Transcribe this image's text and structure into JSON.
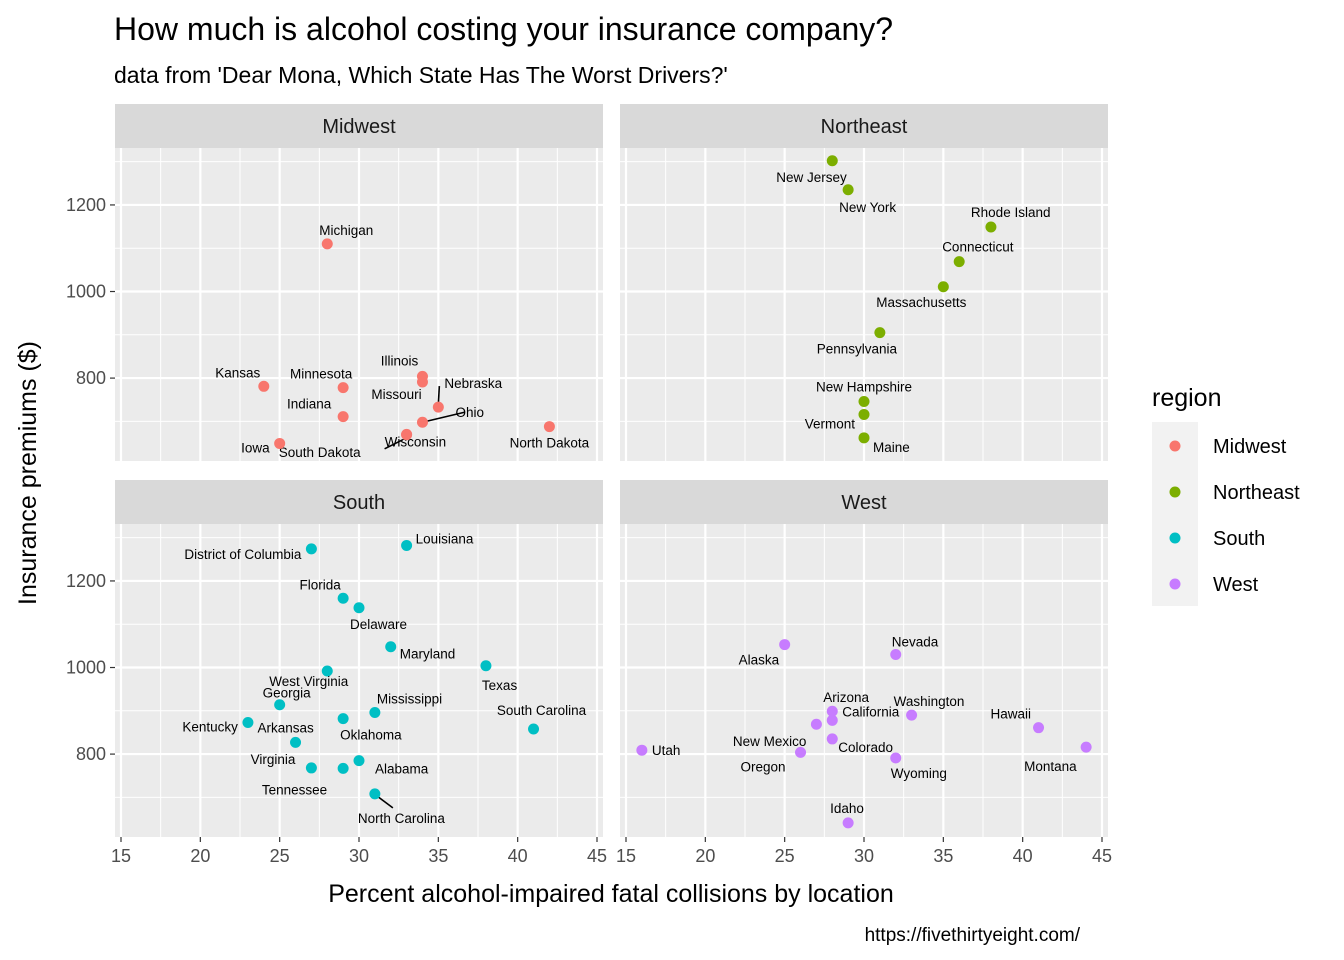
{
  "chart_data": {
    "type": "scatter",
    "title": "How much is alcohol costing your insurance company?",
    "subtitle": "data from 'Dear Mona, Which State Has The Worst Drivers?'",
    "caption": "https://fivethirtyeight.com/",
    "xlabel": "Percent alcohol-impaired fatal collisions by location",
    "ylabel": "Insurance premiums ($)",
    "xlim": [
      15,
      45
    ],
    "ylim": [
      620,
      1320
    ],
    "x_ticks": [
      15,
      20,
      25,
      30,
      35,
      40,
      45
    ],
    "y_ticks": [
      800,
      1000,
      1200
    ],
    "grid": true,
    "facet_by": "region",
    "legend": {
      "title": "region",
      "position": "right",
      "entries": [
        {
          "name": "Midwest",
          "color": "#F8766D"
        },
        {
          "name": "Northeast",
          "color": "#7CAE00"
        },
        {
          "name": "South",
          "color": "#00BFC4"
        },
        {
          "name": "West",
          "color": "#C77CFF"
        }
      ]
    },
    "facets": [
      {
        "name": "Midwest",
        "color": "#F8766D",
        "points": [
          {
            "label": "Michigan",
            "x": 28,
            "y": 1110
          },
          {
            "label": "Kansas",
            "x": 24,
            "y": 781
          },
          {
            "label": "Minnesota",
            "x": 29,
            "y": 778
          },
          {
            "label": "Illinois",
            "x": 34,
            "y": 804
          },
          {
            "label": "Missouri",
            "x": 34,
            "y": 791
          },
          {
            "label": "Nebraska",
            "x": 35,
            "y": 733
          },
          {
            "label": "Indiana",
            "x": 29,
            "y": 711
          },
          {
            "label": "Ohio",
            "x": 34,
            "y": 698
          },
          {
            "label": "Wisconsin",
            "x": 33,
            "y": 670
          },
          {
            "label": "South Dakota",
            "x": 33,
            "y": 669
          },
          {
            "label": "Iowa",
            "x": 25,
            "y": 649
          },
          {
            "label": "North Dakota",
            "x": 42,
            "y": 688
          }
        ]
      },
      {
        "name": "Northeast",
        "color": "#7CAE00",
        "points": [
          {
            "label": "New Jersey",
            "x": 28,
            "y": 1302
          },
          {
            "label": "New York",
            "x": 29,
            "y": 1235
          },
          {
            "label": "Rhode Island",
            "x": 38,
            "y": 1149
          },
          {
            "label": "Connecticut",
            "x": 36,
            "y": 1069
          },
          {
            "label": "Massachusetts",
            "x": 35,
            "y": 1011
          },
          {
            "label": "Pennsylvania",
            "x": 31,
            "y": 905
          },
          {
            "label": "New Hampshire",
            "x": 30,
            "y": 746
          },
          {
            "label": "Vermont",
            "x": 30,
            "y": 716
          },
          {
            "label": "Maine",
            "x": 30,
            "y": 662
          }
        ]
      },
      {
        "name": "South",
        "color": "#00BFC4",
        "points": [
          {
            "label": "District of Columbia",
            "x": 27,
            "y": 1274
          },
          {
            "label": "Louisiana",
            "x": 33,
            "y": 1282
          },
          {
            "label": "Florida",
            "x": 29,
            "y": 1160
          },
          {
            "label": "Delaware",
            "x": 30,
            "y": 1138
          },
          {
            "label": "Maryland",
            "x": 32,
            "y": 1048
          },
          {
            "label": "Texas",
            "x": 38,
            "y": 1004
          },
          {
            "label": "West Virginia",
            "x": 28,
            "y": 992
          },
          {
            "label": "Georgia",
            "x": 25,
            "y": 914
          },
          {
            "label": "Mississippi",
            "x": 31,
            "y": 896
          },
          {
            "label": "Kentucky",
            "x": 23,
            "y": 873
          },
          {
            "label": "Oklahoma",
            "x": 29,
            "y": 882
          },
          {
            "label": "South Carolina",
            "x": 41,
            "y": 858
          },
          {
            "label": "Arkansas",
            "x": 26,
            "y": 827
          },
          {
            "label": "Alabama",
            "x": 30,
            "y": 785
          },
          {
            "label": "Virginia",
            "x": 27,
            "y": 768
          },
          {
            "label": "Tennessee",
            "x": 29,
            "y": 767
          },
          {
            "label": "North Carolina",
            "x": 31,
            "y": 708
          }
        ]
      },
      {
        "name": "West",
        "color": "#C77CFF",
        "points": [
          {
            "label": "Alaska",
            "x": 25,
            "y": 1053
          },
          {
            "label": "Nevada",
            "x": 32,
            "y": 1030
          },
          {
            "label": "Arizona",
            "x": 28,
            "y": 899
          },
          {
            "label": "Washington",
            "x": 33,
            "y": 890
          },
          {
            "label": "California",
            "x": 28,
            "y": 878
          },
          {
            "label": "New Mexico",
            "x": 27,
            "y": 869
          },
          {
            "label": "Hawaii",
            "x": 41,
            "y": 861
          },
          {
            "label": "Montana",
            "x": 44,
            "y": 816
          },
          {
            "label": "Utah",
            "x": 16,
            "y": 809
          },
          {
            "label": "Colorado",
            "x": 28,
            "y": 835
          },
          {
            "label": "Oregon",
            "x": 26,
            "y": 804
          },
          {
            "label": "Wyoming",
            "x": 32,
            "y": 791
          },
          {
            "label": "Idaho",
            "x": 29,
            "y": 641
          }
        ]
      }
    ]
  }
}
